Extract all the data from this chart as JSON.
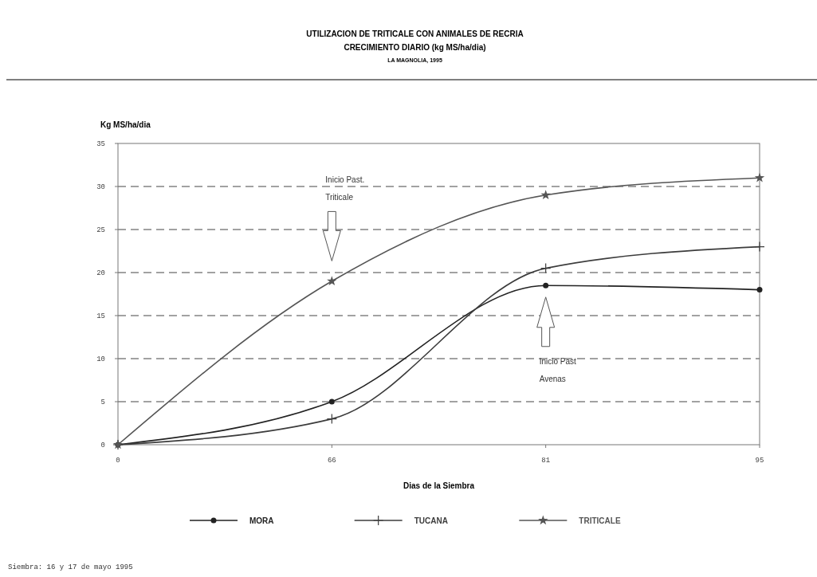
{
  "chart_data": {
    "type": "line",
    "title": "UTILIZACION DE TRITICALE CON ANIMALES DE RECRIA",
    "subtitle": "CRECIMIENTO DIARIO (kg MS/ha/dia)\nLA MAGNOLIA, 1995",
    "xlabel": "Dias de la Siembra",
    "ylabel": "Kg MS/ha/dia",
    "categories": [
      "0",
      "66",
      "81",
      "95"
    ],
    "series": [
      {
        "name": "MORA",
        "color": "#222222",
        "marker": "circle",
        "values": [
          0,
          5,
          18.5,
          18
        ]
      },
      {
        "name": "TUCANA",
        "color": "#3c3c3c",
        "marker": "cross",
        "values": [
          0,
          3,
          20.5,
          23
        ]
      },
      {
        "name": "TRITICALE",
        "color": "#555555",
        "marker": "star",
        "values": [
          0,
          19,
          29,
          31
        ]
      }
    ],
    "ylim": [
      0,
      35
    ],
    "yticks": [
      0,
      5,
      10,
      15,
      20,
      25,
      30,
      35
    ],
    "grid": "y",
    "legend": "bottom",
    "line_style": "solid",
    "annotations": [
      "Inicio Past.\nTriticale",
      "Inicio Past\nAvenas",
      "Siembra: 16 y 17 de mayo 1995"
    ]
  }
}
